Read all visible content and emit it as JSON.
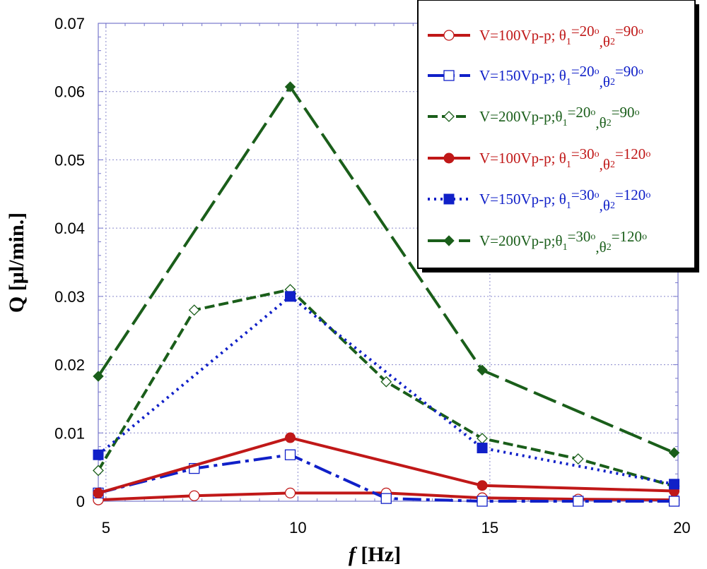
{
  "chart_data": {
    "type": "line",
    "xlabel_italic": "f",
    "xlabel": "[Hz]",
    "ylabel": "Q [µl/min.]",
    "x": [
      4.8,
      7.3,
      9.8,
      12.3,
      14.8,
      17.3,
      19.8
    ],
    "xlim": [
      4.8,
      19.9
    ],
    "ylim": [
      0,
      0.07
    ],
    "xticks": [
      5,
      10,
      15,
      20
    ],
    "yticks": [
      0,
      0.01,
      0.02,
      0.03,
      0.04,
      0.05,
      0.06,
      0.07
    ],
    "xtick_labels": [
      "5",
      "10",
      "15",
      "20"
    ],
    "ytick_labels": [
      "0",
      "0.01",
      "0.02",
      "0.03",
      "0.04",
      "0.05",
      "0.06",
      "0.07"
    ],
    "series": [
      {
        "name": "V=100Vp-p; θ1=20°, θ2=90°",
        "label": {
          "pre": "V=100Vp-p; θ",
          "s1": "1",
          "m1": "=20",
          "o1": "o",
          "m2": ",θ",
          "s2": "2",
          "m3": "=90",
          "o2": "o"
        },
        "color": "#c01818",
        "dash": "",
        "marker": "circle-open",
        "points": [
          [
            4.8,
            0.0002
          ],
          [
            7.3,
            0.0008
          ],
          [
            9.8,
            0.0012
          ],
          [
            12.3,
            0.0012
          ],
          [
            14.8,
            0.0005
          ],
          [
            17.3,
            0.0003
          ],
          [
            19.8,
            0.0002
          ]
        ]
      },
      {
        "name": "V=150Vp-p; θ1=20°, θ2=90°",
        "label": {
          "pre": "V=150Vp-p; θ",
          "s1": "1",
          "m1": "=20",
          "o1": "o",
          "m2": ",θ",
          "s2": "2",
          "m3": "=90",
          "o2": "o"
        },
        "color": "#1020c8",
        "dash": "26,7,5,7",
        "marker": "square-open",
        "points": [
          [
            4.8,
            0.0012
          ],
          [
            7.3,
            0.0048
          ],
          [
            9.8,
            0.0068
          ],
          [
            12.3,
            0.0004
          ],
          [
            14.8,
            0.0
          ],
          [
            17.3,
            0.0
          ],
          [
            19.8,
            0.0
          ]
        ]
      },
      {
        "name": "V=200Vp-p; θ1=20°, θ2=90°",
        "label": {
          "pre": "V=200Vp-p;θ",
          "s1": "1",
          "m1": "=20",
          "o1": "o",
          "m2": ",θ",
          "s2": "2",
          "m3": "=90",
          "o2": "o"
        },
        "color": "#1a5e1a",
        "dash": "14,6",
        "marker": "diamond-open",
        "points": [
          [
            4.8,
            0.0045
          ],
          [
            7.3,
            0.028
          ],
          [
            9.8,
            0.031
          ],
          [
            12.3,
            0.0175
          ],
          [
            14.8,
            0.0092
          ],
          [
            17.3,
            0.0062
          ],
          [
            19.8,
            0.0022
          ]
        ]
      },
      {
        "name": "V=100Vp-p; θ1=30°, θ2=120°",
        "label": {
          "pre": "V=100Vp-p; θ",
          "s1": "1",
          "m1": "=30",
          "o1": "o",
          "m2": ",θ",
          "s2": "2",
          "m3": "=120",
          "o2": "o"
        },
        "color": "#c01818",
        "dash": "",
        "marker": "circle-filled",
        "points": [
          [
            4.8,
            0.0012
          ],
          [
            9.8,
            0.0093
          ],
          [
            14.8,
            0.0023
          ],
          [
            19.8,
            0.0015
          ]
        ]
      },
      {
        "name": "V=150Vp-p; θ1=30°, θ2=120°",
        "label": {
          "pre": "V=150Vp-p; θ",
          "s1": "1",
          "m1": "=30",
          "o1": "o",
          "m2": ",θ",
          "s2": "2",
          "m3": "=120",
          "o2": "o"
        },
        "color": "#1020c8",
        "dash": "3,6",
        "marker": "square-filled",
        "points": [
          [
            4.8,
            0.0068
          ],
          [
            9.8,
            0.03
          ],
          [
            14.8,
            0.0078
          ],
          [
            19.8,
            0.0025
          ]
        ]
      },
      {
        "name": "V=200Vp-p; θ1=30°, θ2=120°",
        "label": {
          "pre": "V=200Vp-p;θ",
          "s1": "1",
          "m1": "=30",
          "o1": "o",
          "m2": ",θ",
          "s2": "2",
          "m3": "=120",
          "o2": "o"
        },
        "color": "#1a5e1a",
        "dash": "34,10",
        "marker": "diamond-filled",
        "points": [
          [
            4.8,
            0.0183
          ],
          [
            9.8,
            0.0607
          ],
          [
            14.8,
            0.0192
          ],
          [
            19.8,
            0.0071
          ]
        ]
      }
    ]
  }
}
